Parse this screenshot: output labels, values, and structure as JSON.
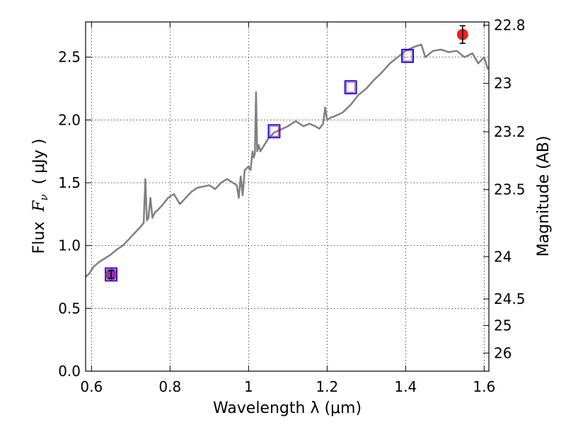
{
  "chart_data": {
    "type": "line",
    "xlabel": "Wavelength  λ (μm)",
    "ylabel": "Flux  F_ν  ( μJy )",
    "ylabel_parts": {
      "prefix": "Flux  ",
      "symbol": "F",
      "sub": "ν",
      "units": "  ( μJy )"
    },
    "right_ylabel": "Magnitude (AB)",
    "xlim": [
      0.585,
      1.612
    ],
    "ylim": [
      0,
      2.78
    ],
    "xticks": [
      0.6,
      0.8,
      1.0,
      1.2,
      1.4,
      1.6
    ],
    "xtick_labels": [
      "0.6",
      "0.8",
      "1",
      "1.2",
      "1.4",
      "1.6"
    ],
    "yticks": [
      0.0,
      0.5,
      1.0,
      1.5,
      2.0,
      2.5
    ],
    "ytick_labels": [
      "0.0",
      "0.5",
      "1.0",
      "1.5",
      "2.0",
      "2.5"
    ],
    "right_ticks": [
      {
        "label": "22.8",
        "mag": 22.8
      },
      {
        "label": "23",
        "mag": 23.0
      },
      {
        "label": "23.2",
        "mag": 23.2
      },
      {
        "label": "23.5",
        "mag": 23.5
      },
      {
        "label": "24",
        "mag": 24.0
      },
      {
        "label": "24.5",
        "mag": 24.5
      },
      {
        "label": "25",
        "mag": 25.0
      },
      {
        "label": "26",
        "mag": 26.0
      }
    ],
    "grid": true,
    "colors": {
      "model": "#808080",
      "square_outer": "#0000ff",
      "square_inner": "#cc3366",
      "obs_red": "#ff1a1a",
      "obs_purple": "#993399",
      "errorbar": "#000000"
    },
    "series": [
      {
        "style": "line",
        "x": [
          0.585,
          0.595,
          0.605,
          0.62,
          0.635,
          0.65,
          0.665,
          0.68,
          0.695,
          0.71,
          0.725,
          0.733,
          0.737,
          0.741,
          0.745,
          0.75,
          0.755,
          0.759,
          0.763,
          0.768,
          0.78,
          0.795,
          0.81,
          0.825,
          0.84,
          0.855,
          0.87,
          0.885,
          0.9,
          0.915,
          0.93,
          0.945,
          0.96,
          0.97,
          0.975,
          0.98,
          0.985,
          0.99,
          1.0,
          1.005,
          1.01,
          1.013,
          1.016,
          1.019,
          1.022,
          1.026,
          1.03,
          1.04,
          1.05,
          1.065,
          1.08,
          1.1,
          1.12,
          1.14,
          1.155,
          1.17,
          1.18,
          1.19,
          1.195,
          1.2,
          1.21,
          1.22,
          1.24,
          1.26,
          1.28,
          1.3,
          1.32,
          1.34,
          1.36,
          1.38,
          1.4,
          1.42,
          1.44,
          1.45,
          1.47,
          1.49,
          1.51,
          1.53,
          1.55,
          1.57,
          1.585,
          1.6,
          1.61
        ],
        "y": [
          0.75,
          0.78,
          0.83,
          0.87,
          0.9,
          0.93,
          0.97,
          1.0,
          1.05,
          1.1,
          1.15,
          1.18,
          1.53,
          1.2,
          1.22,
          1.38,
          1.22,
          1.25,
          1.27,
          1.28,
          1.32,
          1.38,
          1.41,
          1.33,
          1.38,
          1.43,
          1.46,
          1.47,
          1.48,
          1.45,
          1.5,
          1.53,
          1.5,
          1.48,
          1.38,
          1.55,
          1.4,
          1.6,
          1.63,
          1.6,
          1.75,
          1.7,
          1.73,
          2.22,
          1.75,
          1.8,
          1.75,
          1.8,
          1.85,
          1.9,
          1.92,
          1.95,
          1.99,
          1.95,
          1.97,
          1.95,
          1.93,
          1.97,
          2.1,
          2.0,
          2.02,
          2.03,
          2.06,
          2.12,
          2.2,
          2.25,
          2.32,
          2.38,
          2.45,
          2.5,
          2.55,
          2.58,
          2.6,
          2.5,
          2.55,
          2.56,
          2.54,
          2.55,
          2.5,
          2.53,
          2.45,
          2.5,
          2.4
        ]
      },
      {
        "style": "square-markers",
        "x": [
          0.65,
          1.065,
          1.26,
          1.405
        ],
        "y": [
          0.77,
          1.91,
          2.26,
          2.51
        ]
      },
      {
        "style": "circle-errorbar",
        "points": [
          {
            "x": 0.65,
            "y": 0.77,
            "err": 0.03,
            "color": "purple"
          },
          {
            "x": 1.545,
            "y": 2.68,
            "err": 0.07,
            "color": "red"
          }
        ]
      }
    ]
  }
}
